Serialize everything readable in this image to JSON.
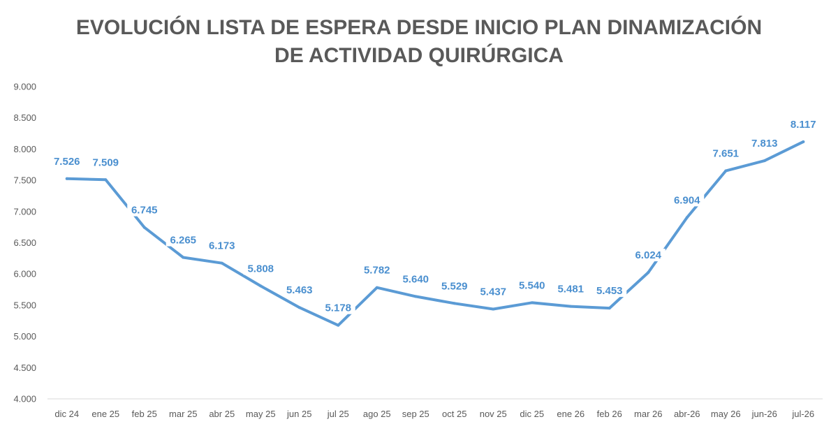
{
  "chart_data": {
    "type": "line",
    "title": "EVOLUCIÓN LISTA DE ESPERA DESDE INICIO PLAN DINAMIZACIÓN DE ACTIVIDAD QUIRÚRGICA",
    "title_lines": [
      "EVOLUCIÓN LISTA DE ESPERA DESDE INICIO PLAN DINAMIZACIÓN",
      "DE ACTIVIDAD QUIRÚRGICA"
    ],
    "xlabel": "",
    "ylabel": "",
    "ylim": [
      4000,
      9000
    ],
    "y_ticks": [
      4000,
      4500,
      5000,
      5500,
      6000,
      6500,
      7000,
      7500,
      8000,
      8500,
      9000
    ],
    "y_tick_labels": [
      "4.000",
      "4.500",
      "5.000",
      "5.500",
      "6.000",
      "6.500",
      "7.000",
      "7.500",
      "8.000",
      "8.500",
      "9.000"
    ],
    "categories": [
      "dic 24",
      "ene 25",
      "feb 25",
      "mar 25",
      "abr 25",
      "may 25",
      "jun 25",
      "jul 25",
      "ago 25",
      "sep 25",
      "oct 25",
      "nov 25",
      "dic 25",
      "ene 26",
      "feb 26",
      "mar 26",
      "abr-26",
      "may 26",
      "jun-26",
      "jul-26"
    ],
    "values": [
      7526,
      7509,
      6745,
      6265,
      6173,
      5808,
      5463,
      5178,
      5782,
      5640,
      5529,
      5437,
      5540,
      5481,
      5453,
      6024,
      6904,
      7651,
      7813,
      8117
    ],
    "data_labels": [
      "7.526",
      "7.509",
      "6.745",
      "6.265",
      "6.173",
      "5.808",
      "5.463",
      "5.178",
      "5.782",
      "5.640",
      "5.529",
      "5.437",
      "5.540",
      "5.481",
      "5.453",
      "6.024",
      "6.904",
      "7.651",
      "7.813",
      "8.117"
    ],
    "grid": false,
    "legend": "none",
    "line_color": "#5b9bd5",
    "label_color": "#4a8fcf",
    "text_color": "#595959",
    "axis_color": "#d9d9d9"
  }
}
